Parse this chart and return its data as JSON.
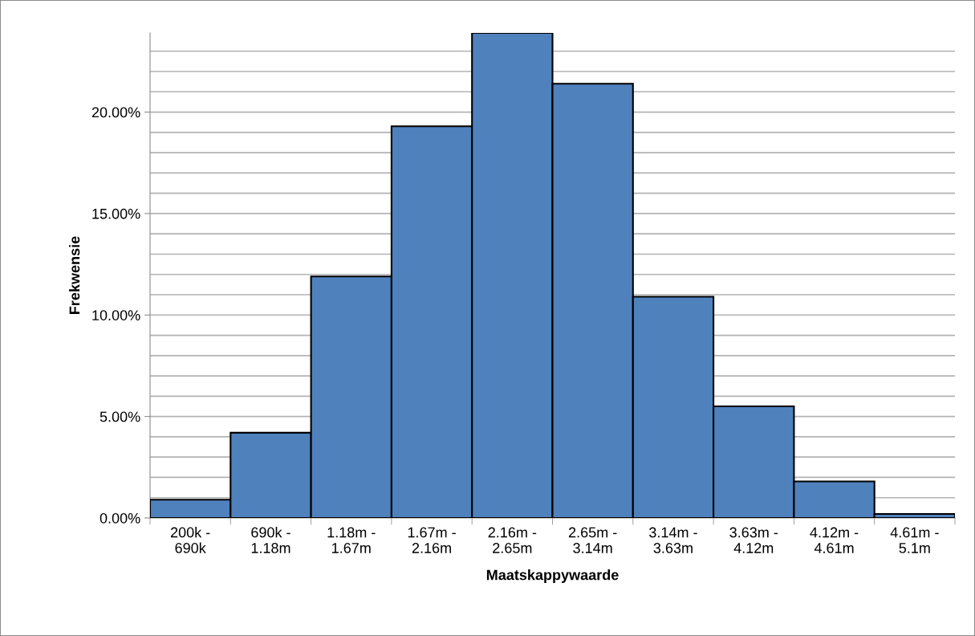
{
  "chart_data": {
    "type": "bar",
    "xlabel": "Maatskappywaarde",
    "ylabel": "Frekwensie",
    "categories": [
      "200k -\n690k",
      "690k -\n1.18m",
      "1.18m -\n1.67m",
      "1.67m -\n2.16m",
      "2.16m -\n2.65m",
      "2.65m -\n3.14m",
      "3.14m -\n3.63m",
      "3.63m -\n4.12m",
      "4.12m -\n4.61m",
      "4.61m -\n5.1m"
    ],
    "values": [
      0.9,
      4.2,
      11.9,
      19.3,
      23.9,
      21.4,
      10.9,
      5.5,
      1.8,
      0.2
    ],
    "color": "#4f81bd",
    "ylim": [
      0,
      23.9
    ],
    "yticks": [
      {
        "value": 0,
        "label": "0.00%"
      },
      {
        "value": 1,
        "label": null
      },
      {
        "value": 2,
        "label": null
      },
      {
        "value": 3,
        "label": null
      },
      {
        "value": 4,
        "label": null
      },
      {
        "value": 5,
        "label": "5.00%"
      },
      {
        "value": 6,
        "label": null
      },
      {
        "value": 7,
        "label": null
      },
      {
        "value": 8,
        "label": null
      },
      {
        "value": 9,
        "label": null
      },
      {
        "value": 10,
        "label": "10.00%"
      },
      {
        "value": 11,
        "label": null
      },
      {
        "value": 12,
        "label": null
      },
      {
        "value": 13,
        "label": null
      },
      {
        "value": 14,
        "label": null
      },
      {
        "value": 15,
        "label": "15.00%"
      },
      {
        "value": 16,
        "label": null
      },
      {
        "value": 17,
        "label": null
      },
      {
        "value": 18,
        "label": null
      },
      {
        "value": 19,
        "label": null
      },
      {
        "value": 20,
        "label": "20.00%"
      },
      {
        "value": 21,
        "label": null
      },
      {
        "value": 22,
        "label": null
      },
      {
        "value": 23,
        "label": null
      }
    ],
    "grid": "y",
    "legend": false
  }
}
